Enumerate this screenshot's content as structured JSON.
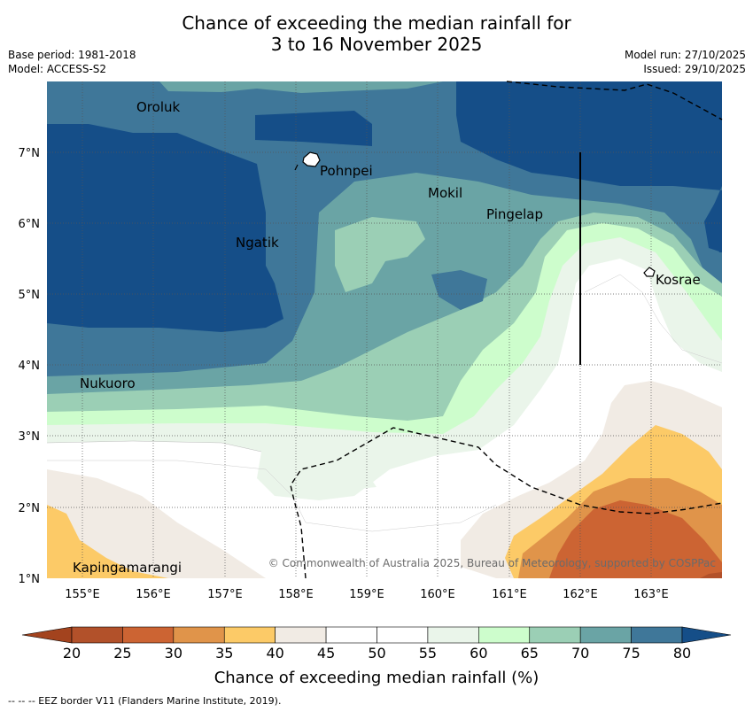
{
  "header": {
    "title_line1": "Chance of exceeding the median rainfall for",
    "title_line2": "3 to 16 November 2025",
    "base_period": "Base period: 1981-2018",
    "model": "Model: ACCESS-S2",
    "model_run": "Model run: 27/10/2025",
    "issued": "Issued: 29/10/2025"
  },
  "map": {
    "lat_labels": [
      "1°N",
      "2°N",
      "3°N",
      "4°N",
      "5°N",
      "6°N",
      "7°N"
    ],
    "lon_labels": [
      "155°E",
      "156°E",
      "157°E",
      "158°E",
      "159°E",
      "160°E",
      "161°E",
      "162°E",
      "163°E"
    ],
    "places": {
      "oroluk": "Oroluk",
      "pohnpei": "Pohnpei",
      "mokil": "Mokil",
      "pingelap": "Pingelap",
      "ngatik": "Ngatik",
      "kosrae": "Kosrae",
      "nukuoro": "Nukuoro",
      "kapingamarangi": "Kapingamarangi"
    },
    "copyright": "© Commonwealth of Australia 2025, Bureau of Meteorology, supported by COSPPac"
  },
  "colorbar": {
    "ticks": [
      "20",
      "25",
      "30",
      "35",
      "40",
      "45",
      "50",
      "55",
      "60",
      "65",
      "70",
      "75",
      "80"
    ],
    "colors": [
      "#b2512a",
      "#cc6433",
      "#e0944a",
      "#fcca67",
      "#f1ebe4",
      "#ffffff",
      "#ffffff",
      "#eaf5ea",
      "#cdfdcc",
      "#9bcfb5",
      "#6aa4a5",
      "#3f7799"
    ],
    "low_color": "#a3431e",
    "high_color": "#154e88",
    "title": "Chance of exceeding median rainfall (%)"
  },
  "footnote": "--  --  -- EEZ border V11 (Flanders Marine Institute, 2019)."
}
